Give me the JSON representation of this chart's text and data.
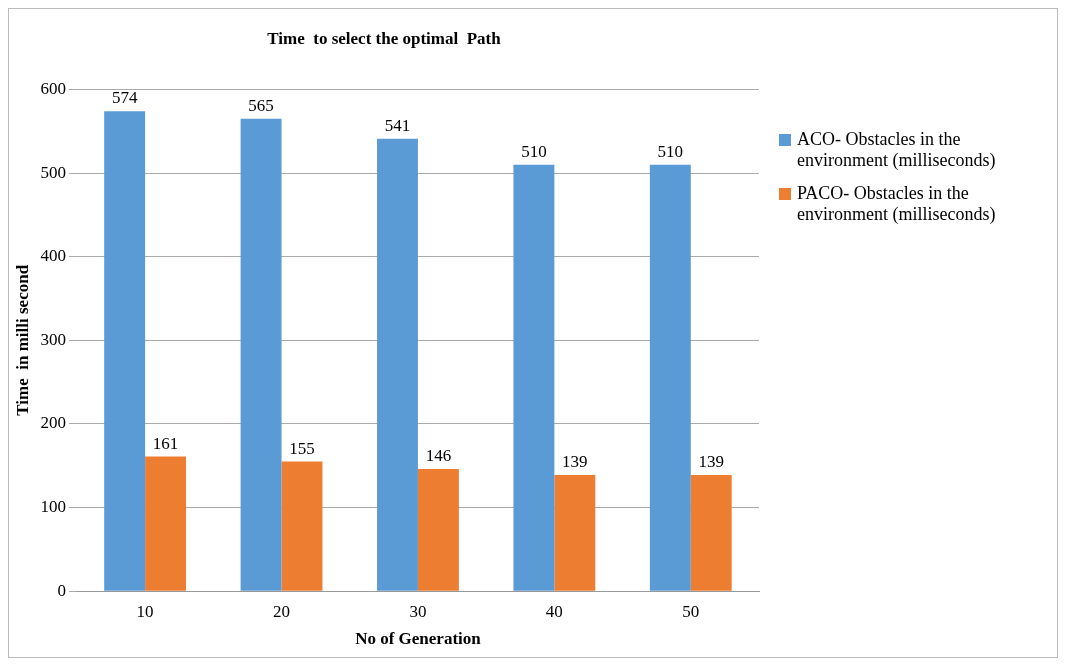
{
  "chart_data": {
    "type": "bar",
    "title": "Time  to select the optimal  Path",
    "xlabel": "No of Generation",
    "ylabel": "Time  in milli second",
    "categories": [
      "10",
      "20",
      "30",
      "40",
      "50"
    ],
    "series": [
      {
        "name": "ACO- Obstacles in the environment  (milliseconds)",
        "color": "#5b9bd5",
        "values": [
          574,
          565,
          541,
          510,
          510
        ]
      },
      {
        "name": "PACO- Obstacles in the environment  (milliseconds)",
        "color": "#ed7d31",
        "values": [
          161,
          155,
          146,
          139,
          139
        ]
      }
    ],
    "ylim": [
      0,
      600
    ],
    "yticks": [
      0,
      100,
      200,
      300,
      400,
      500,
      600
    ],
    "grid": "y",
    "legend": "right",
    "data_labels": true
  }
}
